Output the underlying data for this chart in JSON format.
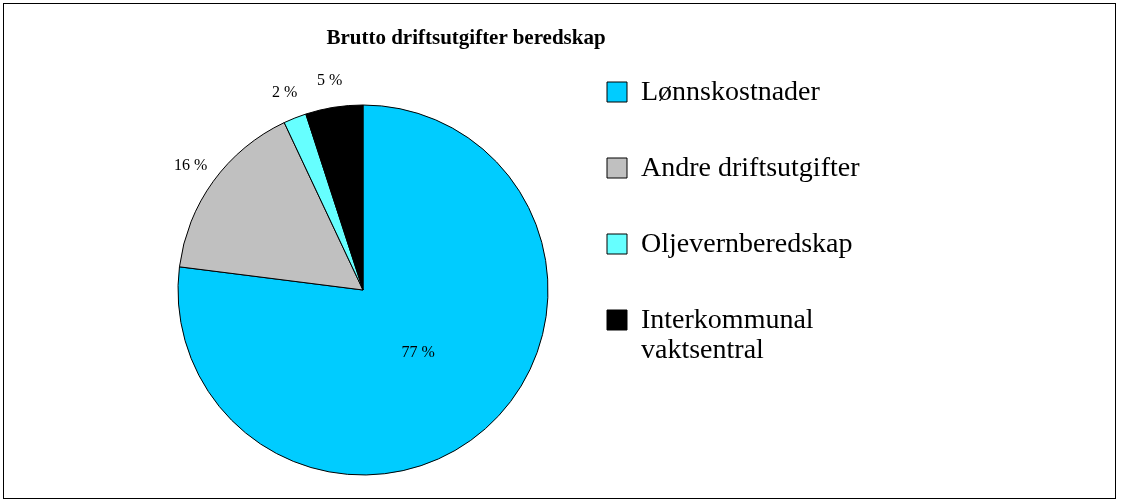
{
  "chart_data": {
    "type": "pie",
    "title": "Brutto driftsutgifter beredskap",
    "categories": [
      "Lønnskostnader",
      "Andre driftsutgifter",
      "Oljevernberedskap",
      "Interkommunal vaktsentral"
    ],
    "values": [
      77,
      16,
      2,
      5
    ],
    "colors": [
      "#00ccff",
      "#c0c0c0",
      "#66ffff",
      "#000000"
    ],
    "value_labels": [
      "77 %",
      "16 %",
      "2 %",
      "5 %"
    ],
    "legend": "right"
  }
}
